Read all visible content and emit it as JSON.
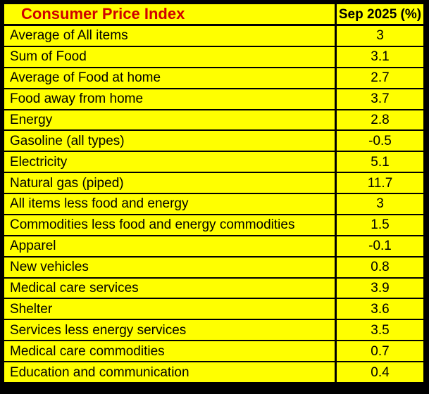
{
  "table": {
    "title": "Consumer Price Index",
    "period_header": "Sep 2025 (%)",
    "rows": [
      {
        "label": "Average of All items",
        "value": "3"
      },
      {
        "label": "Sum of Food",
        "value": "3.1"
      },
      {
        "label": "Average of Food at home",
        "value": "2.7"
      },
      {
        "label": "Food away from home",
        "value": "3.7"
      },
      {
        "label": "Energy",
        "value": "2.8"
      },
      {
        "label": "Gasoline (all types)",
        "value": "-0.5"
      },
      {
        "label": "Electricity",
        "value": "5.1"
      },
      {
        "label": "Natural gas (piped)",
        "value": "11.7"
      },
      {
        "label": "All items less food and energy",
        "value": "3"
      },
      {
        "label": "Commodities less food and energy commodities",
        "value": "1.5"
      },
      {
        "label": "Apparel",
        "value": "-0.1"
      },
      {
        "label": "New vehicles",
        "value": "0.8"
      },
      {
        "label": "Medical care services",
        "value": "3.9"
      },
      {
        "label": "Shelter",
        "value": "3.6"
      },
      {
        "label": "Services less energy services",
        "value": "3.5"
      },
      {
        "label": "Medical care commodities",
        "value": "0.7"
      },
      {
        "label": "Education and communication",
        "value": "0.4"
      }
    ],
    "colors": {
      "cell_background": "#ffff00",
      "grid_border": "#000000",
      "title_text": "#d00000",
      "body_text": "#000000"
    }
  },
  "chart_data": {
    "type": "table",
    "title": "Consumer Price Index",
    "value_column_header": "Sep 2025 (%)",
    "categories": [
      "Average of All items",
      "Sum of Food",
      "Average of Food at home",
      "Food away from home",
      "Energy",
      "Gasoline (all types)",
      "Electricity",
      "Natural gas (piped)",
      "All items less food and energy",
      "Commodities less food and energy commodities",
      "Apparel",
      "New vehicles",
      "Medical care services",
      "Shelter",
      "Services less energy services",
      "Medical care commodities",
      "Education and communication"
    ],
    "values": [
      3,
      3.1,
      2.7,
      3.7,
      2.8,
      -0.5,
      5.1,
      11.7,
      3,
      1.5,
      -0.1,
      0.8,
      3.9,
      3.6,
      3.5,
      0.7,
      0.4
    ],
    "units": "percent change, Sep 2025"
  }
}
